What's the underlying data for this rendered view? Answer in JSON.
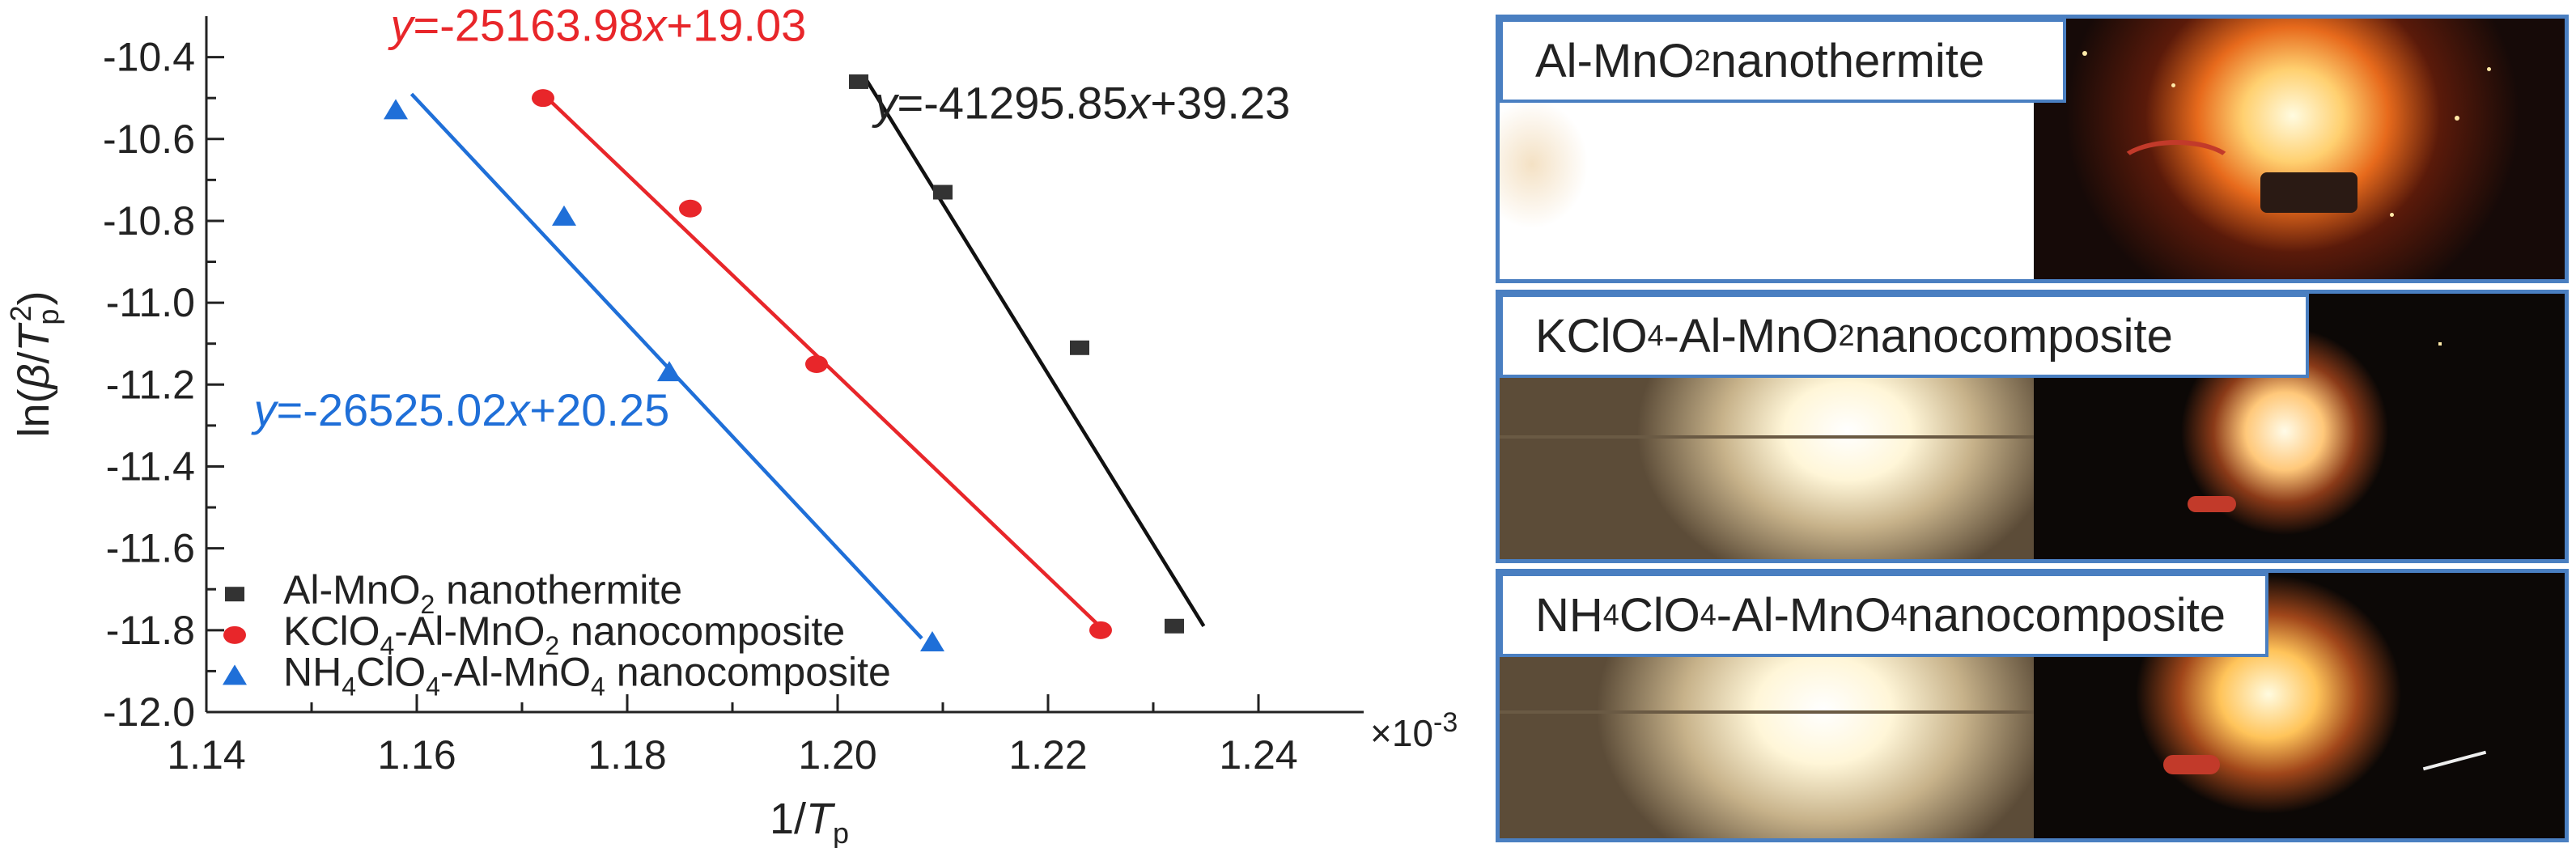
{
  "chart_data": {
    "type": "scatter",
    "xlabel": "1/T_p",
    "ylabel": "ln(β/T_p^2)",
    "x_multiplier": "×10^-3",
    "xlim": [
      1.14,
      1.25
    ],
    "ylim": [
      -12.0,
      -10.3
    ],
    "xticks": [
      "1.14",
      "1.16",
      "1.18",
      "1.20",
      "1.22",
      "1.24"
    ],
    "yticks": [
      "-10.4",
      "-10.6",
      "-10.8",
      "-11.0",
      "-11.2",
      "-11.4",
      "-11.6",
      "-11.8",
      "-12.0"
    ],
    "series": [
      {
        "name": "Al-MnO2 nanothermite",
        "color": "#333333",
        "marker": "square",
        "x": [
          1.202,
          1.21,
          1.223,
          1.232
        ],
        "y": [
          -10.46,
          -10.73,
          -11.11,
          -11.79
        ],
        "fit": {
          "x": [
            1.2026,
            1.2348
          ],
          "y": [
            -10.45,
            -11.79
          ]
        },
        "equation": {
          "text": "y=-41295.85x+39.23",
          "pre": "y",
          "mid": "=-41295.85",
          "x": "x",
          "post": "+39.23"
        }
      },
      {
        "name": "KClO4-Al-MnO2 nanocomposite",
        "color": "#e8262a",
        "marker": "circle",
        "x": [
          1.172,
          1.186,
          1.198,
          1.225
        ],
        "y": [
          -10.5,
          -10.77,
          -11.15,
          -11.8
        ],
        "fit": {
          "x": [
            1.172,
            1.2253
          ],
          "y": [
            -10.49,
            -11.8
          ]
        },
        "equation": {
          "text": "y=-25163.98x+19.03",
          "pre": "y",
          "mid": "=-25163.98",
          "x": "x",
          "post": "+19.03"
        }
      },
      {
        "name": "NH4ClO4-Al-MnO4 nanocomposite",
        "color": "#1f6fd8",
        "marker": "triangle",
        "x": [
          1.158,
          1.174,
          1.184,
          1.209
        ],
        "y": [
          -10.53,
          -10.79,
          -11.17,
          -11.83
        ],
        "fit": {
          "x": [
            1.1595,
            1.208
          ],
          "y": [
            -10.49,
            -11.82
          ]
        },
        "equation": {
          "text": "y=-26525.02x+20.25",
          "pre": "y",
          "mid": "=-26525.02",
          "x": "x",
          "post": "+20.25"
        }
      }
    ]
  },
  "panels": [
    {
      "label_main": "Al-MnO",
      "label_sub": "2",
      "label_rest": " nanothermite"
    },
    {
      "label_main": "KClO",
      "label_sub": "4",
      "label_mid": "-Al-MnO",
      "label_sub2": "2",
      "label_rest": " nanocomposite"
    },
    {
      "label_main": "NH",
      "label_sub": "4",
      "label_mid": "ClO",
      "label_sub2": "4",
      "label_mid2": "-Al-MnO",
      "label_sub3": "4",
      "label_rest": " nanocomposite"
    }
  ]
}
